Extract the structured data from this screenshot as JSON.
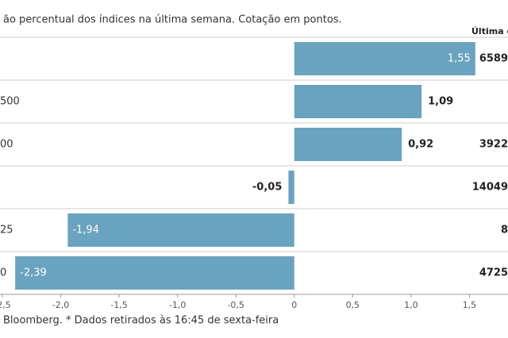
{
  "chart_data": {
    "type": "hbar",
    "title": "ão percentual dos índices na última semana. Cotação em pontos.",
    "column_header": "Última c",
    "categories": [
      null,
      "500",
      "00",
      null,
      "25",
      "0"
    ],
    "values": [
      1.55,
      1.09,
      0.92,
      -0.05,
      -1.94,
      -2.39
    ],
    "value_labels": [
      "1,55",
      "1,09",
      "0,92",
      "-0,05",
      "-1,94",
      "-2,39"
    ],
    "last_quote": [
      "6589",
      null,
      "3922",
      "14049",
      "8",
      "4725"
    ],
    "color": "#6aa3bf",
    "xlim": [
      -2.52,
      1.83
    ],
    "xticks": [
      {
        "value": -2.5,
        "label": "-2,5"
      },
      {
        "value": -2,
        "label": "-2,0"
      },
      {
        "value": -1.5,
        "label": "-1,5"
      },
      {
        "value": -1,
        "label": "-1,0"
      },
      {
        "value": -0.5,
        "label": "-0,5"
      },
      0,
      {
        "value": 0.5,
        "label": "0,5"
      },
      {
        "value": 1,
        "label": "1,0"
      },
      {
        "value": 1.5,
        "label": "1,5"
      }
    ],
    "source": "Bloomberg.  * Dados retirados às 16:45 de sexta-feira"
  }
}
